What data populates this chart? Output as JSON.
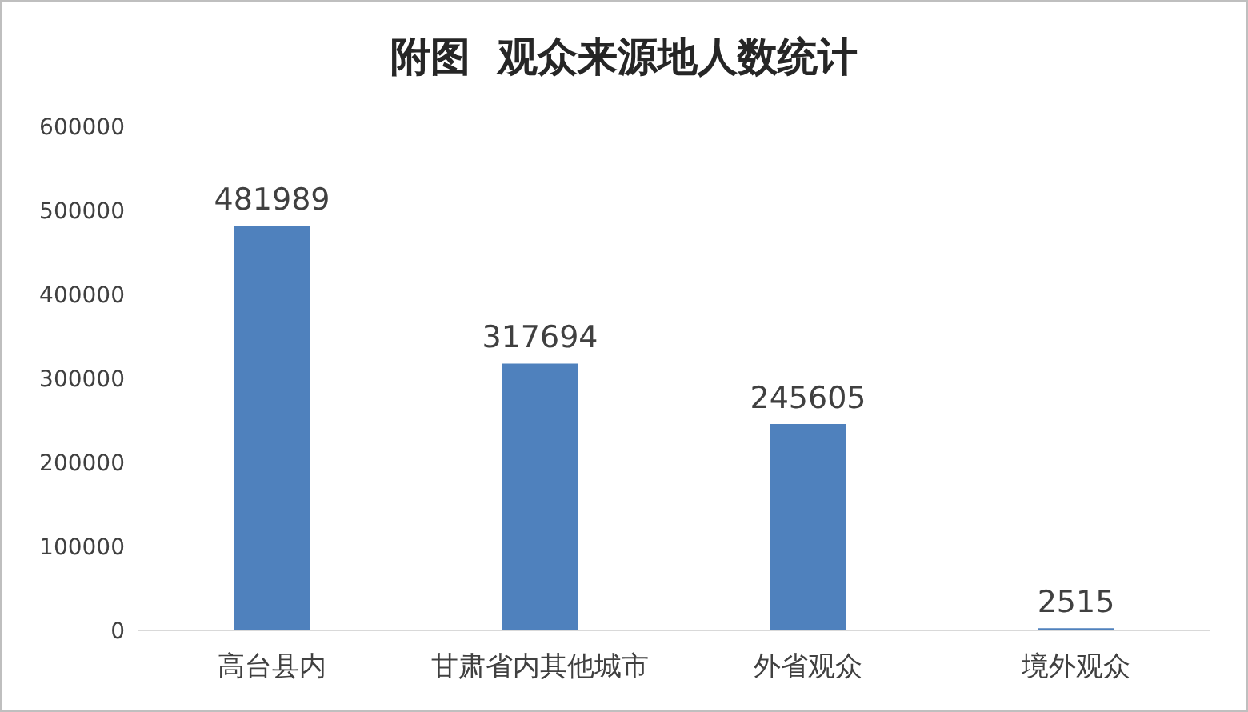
{
  "chart_data": {
    "type": "bar",
    "title": "附图  观众来源地人数统计",
    "categories": [
      "高台县内",
      "甘肃省内其他城市",
      "外省观众",
      "境外观众"
    ],
    "values": [
      481989,
      317694,
      245605,
      2515
    ],
    "color": "#4f81bd",
    "ylim": [
      0,
      600000
    ],
    "yticks": [
      0,
      100000,
      200000,
      300000,
      400000,
      500000,
      600000
    ],
    "data_labels": true
  }
}
